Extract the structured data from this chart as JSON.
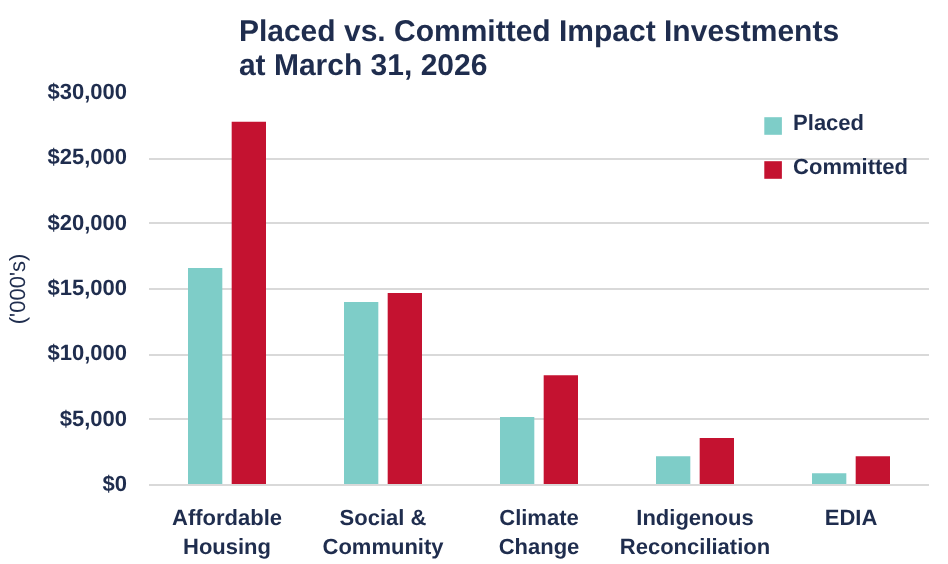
{
  "chart_data": {
    "type": "bar",
    "title": "Placed vs. Committed Impact Investments\nat March 31, 2026",
    "ylabel": "('000's)",
    "categories": [
      "Affordable Housing",
      "Social & Community",
      "Climate Change",
      "Indigenous Reconciliation",
      "EDIA"
    ],
    "series": [
      {
        "name": "Placed",
        "color": "#7ecdc8",
        "values": [
          16600,
          14000,
          5200,
          2200,
          900
        ]
      },
      {
        "name": "Committed",
        "color": "#c41230",
        "values": [
          27800,
          14700,
          8400,
          3600,
          2200
        ]
      }
    ],
    "ylim": [
      0,
      30000
    ],
    "yticks": [
      {
        "value": 0,
        "label": "$0"
      },
      {
        "value": 5000,
        "label": "$5,000"
      },
      {
        "value": 10000,
        "label": "$10,000"
      },
      {
        "value": 15000,
        "label": "$15,000"
      },
      {
        "value": 20000,
        "label": "$20,000"
      },
      {
        "value": 25000,
        "label": "$25,000"
      },
      {
        "value": 30000,
        "label": "$30,000"
      }
    ],
    "grid": "y",
    "legend": "top right"
  }
}
